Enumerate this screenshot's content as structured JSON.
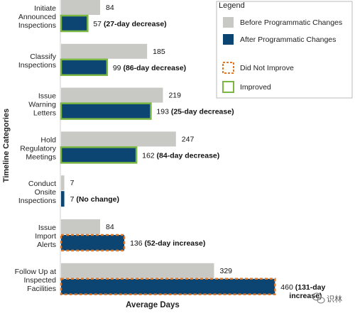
{
  "chart_data": {
    "type": "bar",
    "orientation": "horizontal",
    "ylabel": "Timeline Categories",
    "xlabel": "Average Days",
    "categories": [
      [
        "Initiate",
        "Announced",
        "Inspections"
      ],
      [
        "Classify",
        "Inspections"
      ],
      [
        "Issue",
        "Warning",
        "Letters"
      ],
      [
        "Hold",
        "Regulatory",
        "Meetings"
      ],
      [
        "Conduct",
        "Onsite",
        "Inspections"
      ],
      [
        "Issue",
        "Import",
        "Alerts"
      ],
      [
        "Follow Up at",
        "Inspected",
        "Facilities"
      ]
    ],
    "series": [
      {
        "name": "Before Programmatic Changes",
        "color": "#c8c8c5",
        "values": [
          84,
          185,
          219,
          247,
          7,
          84,
          329
        ]
      },
      {
        "name": "After Programmatic Changes",
        "color": "#0c4472",
        "values": [
          57,
          99,
          193,
          162,
          7,
          136,
          460
        ]
      }
    ],
    "after_notes": [
      "(27-day decrease)",
      "(86-day decrease)",
      "(25-day decrease)",
      "(84-day decrease)",
      "(No change)",
      "(52-day increase)",
      [
        "(131-day",
        "increase)"
      ]
    ],
    "after_outline": [
      "improved",
      "improved",
      "improved",
      "improved",
      "none",
      "did_not_improve",
      "did_not_improve"
    ],
    "outline_colors": {
      "improved": "#7ab843",
      "did_not_improve": "#e0782a"
    },
    "legend": {
      "title": "Legend",
      "items": [
        {
          "label": "Before Programmatic Changes",
          "kind": "before"
        },
        {
          "label": "After Programmatic Changes",
          "kind": "after"
        },
        {
          "label": "Did Not Improve",
          "kind": "did_not_improve"
        },
        {
          "label": "Improved",
          "kind": "improved"
        }
      ],
      "position": "top-right"
    },
    "grid": false
  },
  "watermark": {
    "text": "识林",
    "icon": "wechat-icon"
  }
}
